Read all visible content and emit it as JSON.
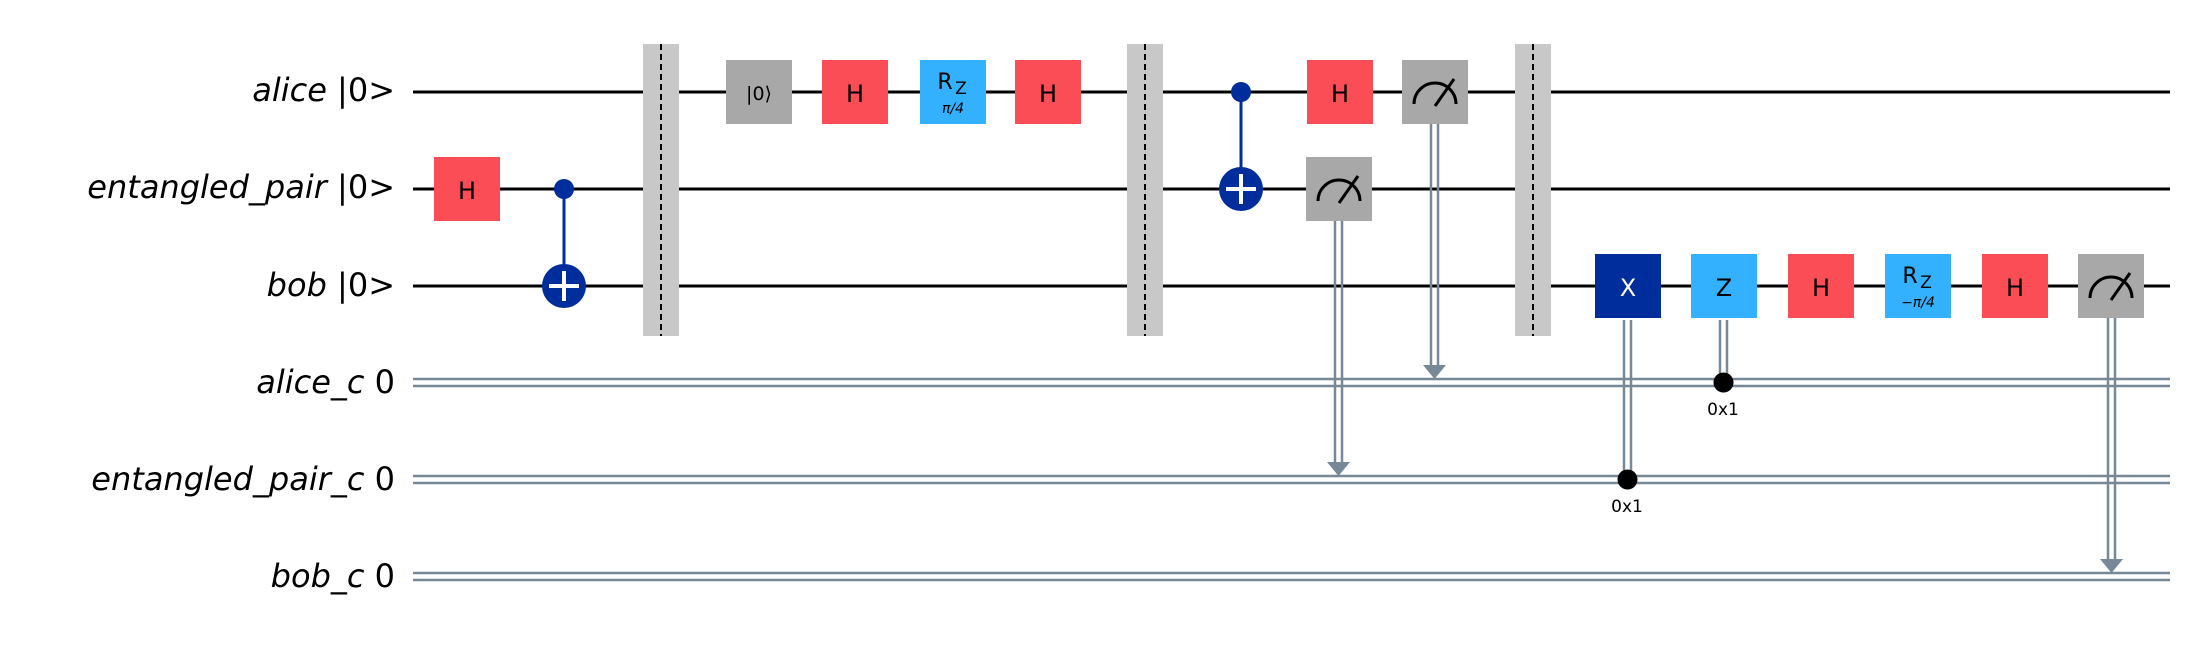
{
  "colors": {
    "wire": "#000000",
    "classical_wire": "#778899",
    "barrier": "#c8c8c8",
    "h_gate": "#fa4d56",
    "rz_gate": "#33b1ff",
    "z_gate": "#33b1ff",
    "x_gate": "#002d9c",
    "measure": "#a8a8a8",
    "reset": "#a8a8a8",
    "control": "#002d9c",
    "cond_dot": "#000000"
  },
  "registers": {
    "alice": {
      "name": "alice",
      "init": "|0>"
    },
    "ent": {
      "name": "entangled_pair",
      "init": "|0>"
    },
    "bob": {
      "name": "bob",
      "init": "|0>"
    },
    "alice_c": {
      "name": "alice_c",
      "init": "0"
    },
    "ent_c": {
      "name": "entangled_pair_c",
      "init": "0"
    },
    "bob_c": {
      "name": "bob_c",
      "init": "0"
    }
  },
  "gates": {
    "h": "H",
    "reset": "|0⟩",
    "rz_main": "R",
    "rz_sub": "Z",
    "rz_param_1": "π/4",
    "rz_param_2": "−π/4",
    "x": "X",
    "z": "Z"
  },
  "conditions": {
    "z_cond": "0x1",
    "x_cond": "0x1"
  }
}
